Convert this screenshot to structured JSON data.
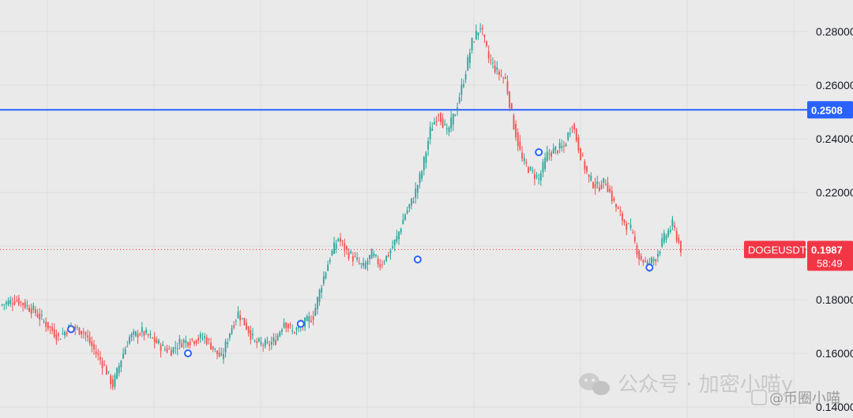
{
  "chart_data": {
    "type": "candlestick",
    "symbol": "DOGEUSDT",
    "ylim": [
      0.14,
      0.288
    ],
    "y_ticks": [
      "0.28000",
      "0.26000",
      "0.24000",
      "0.22000",
      "0.18000",
      "0.16000",
      "0.14000"
    ],
    "horizontal_line": {
      "value": 0.2508,
      "label": "0.2508",
      "color": "#2962ff"
    },
    "last_price": {
      "value": 0.1987,
      "label": "0.1987",
      "countdown": "58:49",
      "color": "#f23645"
    },
    "colors": {
      "up": "#26a69a",
      "down": "#ef5350",
      "grid": "#dedede",
      "marker": "#2962ff"
    },
    "grid": true,
    "markers_approx_price": [
      0.169,
      0.16,
      0.171,
      0.195,
      0.235,
      0.192
    ],
    "close_path": [
      [
        0,
        0.178
      ],
      [
        8,
        0.18
      ],
      [
        16,
        0.176
      ],
      [
        22,
        0.171
      ],
      [
        28,
        0.166
      ],
      [
        34,
        0.17
      ],
      [
        40,
        0.168
      ],
      [
        46,
        0.16
      ],
      [
        50,
        0.155
      ],
      [
        54,
        0.148
      ],
      [
        58,
        0.158
      ],
      [
        62,
        0.166
      ],
      [
        68,
        0.168
      ],
      [
        72,
        0.166
      ],
      [
        78,
        0.162
      ],
      [
        82,
        0.161
      ],
      [
        86,
        0.164
      ],
      [
        92,
        0.165
      ],
      [
        98,
        0.166
      ],
      [
        102,
        0.162
      ],
      [
        106,
        0.158
      ],
      [
        110,
        0.168
      ],
      [
        114,
        0.175
      ],
      [
        118,
        0.17
      ],
      [
        122,
        0.164
      ],
      [
        128,
        0.163
      ],
      [
        132,
        0.165
      ],
      [
        136,
        0.172
      ],
      [
        140,
        0.168
      ],
      [
        144,
        0.17
      ],
      [
        150,
        0.174
      ],
      [
        154,
        0.186
      ],
      [
        158,
        0.196
      ],
      [
        162,
        0.203
      ],
      [
        166,
        0.198
      ],
      [
        170,
        0.195
      ],
      [
        174,
        0.192
      ],
      [
        178,
        0.197
      ],
      [
        182,
        0.193
      ],
      [
        186,
        0.197
      ],
      [
        190,
        0.203
      ],
      [
        194,
        0.212
      ],
      [
        198,
        0.218
      ],
      [
        202,
        0.228
      ],
      [
        206,
        0.243
      ],
      [
        210,
        0.25
      ],
      [
        214,
        0.242
      ],
      [
        218,
        0.25
      ],
      [
        222,
        0.262
      ],
      [
        226,
        0.276
      ],
      [
        230,
        0.282
      ],
      [
        234,
        0.27
      ],
      [
        238,
        0.265
      ],
      [
        242,
        0.262
      ],
      [
        246,
        0.245
      ],
      [
        250,
        0.232
      ],
      [
        254,
        0.228
      ],
      [
        258,
        0.225
      ],
      [
        262,
        0.234
      ],
      [
        266,
        0.236
      ],
      [
        270,
        0.237
      ],
      [
        274,
        0.246
      ],
      [
        278,
        0.234
      ],
      [
        282,
        0.225
      ],
      [
        286,
        0.222
      ],
      [
        290,
        0.224
      ],
      [
        294,
        0.216
      ],
      [
        298,
        0.21
      ],
      [
        302,
        0.206
      ],
      [
        306,
        0.196
      ],
      [
        310,
        0.193
      ],
      [
        314,
        0.196
      ],
      [
        318,
        0.203
      ],
      [
        322,
        0.208
      ],
      [
        326,
        0.199
      ]
    ]
  },
  "watermark": {
    "wechat_text": "公众号 · 加密小喵y",
    "bottom_text": "@币圈小喵"
  }
}
